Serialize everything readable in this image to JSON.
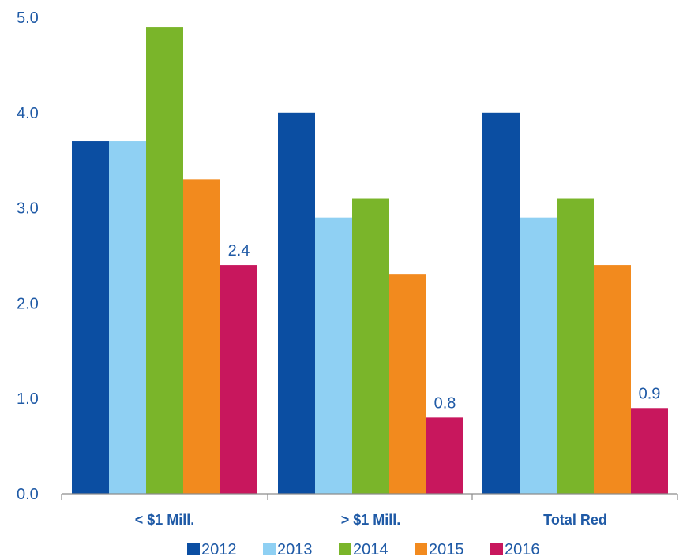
{
  "chart_data": {
    "type": "bar",
    "categories": [
      "< $1 Mill.",
      "> $1 Mill.",
      "Total Red"
    ],
    "series": [
      {
        "name": "2012",
        "color": "#0b4ea2",
        "values": [
          3.7,
          4.0,
          4.0
        ]
      },
      {
        "name": "2013",
        "color": "#8fd0f3",
        "values": [
          3.7,
          2.9,
          2.9
        ]
      },
      {
        "name": "2014",
        "color": "#7ab52a",
        "values": [
          4.9,
          3.1,
          3.1
        ]
      },
      {
        "name": "2015",
        "color": "#f28a1e",
        "values": [
          3.3,
          2.3,
          2.4
        ]
      },
      {
        "name": "2016",
        "color": "#c8175d",
        "values": [
          2.4,
          0.8,
          0.9
        ]
      }
    ],
    "data_labels": [
      {
        "series": 4,
        "category": 0,
        "text": "2.4"
      },
      {
        "series": 4,
        "category": 1,
        "text": "0.8"
      },
      {
        "series": 4,
        "category": 2,
        "text": "0.9"
      }
    ],
    "y_ticks": [
      "0.0",
      "1.0",
      "2.0",
      "3.0",
      "4.0",
      "5.0"
    ],
    "ylim": [
      0,
      5
    ],
    "title": "",
    "xlabel": "",
    "ylabel": "",
    "grid": false,
    "legend_position": "bottom"
  }
}
